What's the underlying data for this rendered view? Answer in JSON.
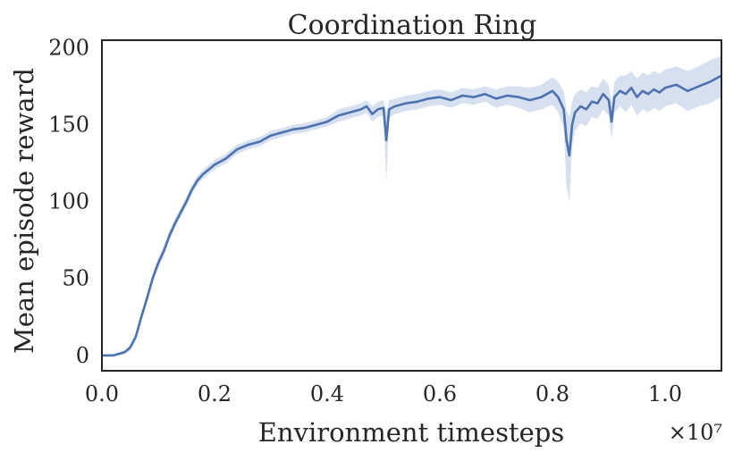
{
  "chart_data": {
    "type": "line",
    "title": "Coordination Ring",
    "xlabel": "Environment timesteps",
    "ylabel": "Mean episode reward",
    "x_offset_text": "×10⁷",
    "xlim": [
      0.0,
      1.1
    ],
    "ylim": [
      -10,
      205
    ],
    "x_ticks": [
      0.0,
      0.2,
      0.4,
      0.6,
      0.8,
      1.0
    ],
    "x_tick_labels": [
      "0.0",
      "0.2",
      "0.4",
      "0.6",
      "0.8",
      "1.0"
    ],
    "y_ticks": [
      0,
      50,
      100,
      150,
      200
    ],
    "y_tick_labels": [
      "0",
      "50",
      "100",
      "150",
      "200"
    ],
    "grid": false,
    "legend": "none",
    "line_color": "#4c72b0",
    "band_color": "#c9d6ea",
    "series": [
      {
        "x": [
          0.0,
          0.02,
          0.03,
          0.04,
          0.05,
          0.06,
          0.07,
          0.08,
          0.09,
          0.1,
          0.11,
          0.12,
          0.13,
          0.14,
          0.15,
          0.16,
          0.17,
          0.18,
          0.19,
          0.2,
          0.22,
          0.24,
          0.26,
          0.28,
          0.3,
          0.32,
          0.34,
          0.36,
          0.38,
          0.4,
          0.42,
          0.44,
          0.46,
          0.47,
          0.48,
          0.49,
          0.5,
          0.505,
          0.51,
          0.52,
          0.54,
          0.56,
          0.58,
          0.6,
          0.62,
          0.64,
          0.66,
          0.68,
          0.7,
          0.72,
          0.74,
          0.76,
          0.78,
          0.8,
          0.81,
          0.82,
          0.825,
          0.83,
          0.835,
          0.84,
          0.85,
          0.86,
          0.87,
          0.88,
          0.89,
          0.9,
          0.905,
          0.91,
          0.92,
          0.93,
          0.94,
          0.95,
          0.96,
          0.97,
          0.98,
          0.99,
          1.0,
          1.02,
          1.04,
          1.06,
          1.08,
          1.1
        ],
        "y": [
          0,
          0,
          1,
          2,
          5,
          12,
          25,
          37,
          50,
          60,
          68,
          78,
          86,
          93,
          100,
          108,
          114,
          118,
          121,
          124,
          128,
          134,
          137,
          139,
          143,
          145,
          147,
          148,
          150,
          152,
          156,
          158,
          160,
          162,
          157,
          160,
          161,
          140,
          160,
          162,
          164,
          165,
          167,
          168,
          166,
          169,
          168,
          170,
          167,
          169,
          168,
          166,
          168,
          172,
          168,
          160,
          140,
          130,
          150,
          158,
          162,
          160,
          165,
          164,
          170,
          166,
          152,
          168,
          172,
          170,
          174,
          168,
          172,
          170,
          173,
          171,
          174,
          176,
          172,
          175,
          178,
          182
        ],
        "lower": [
          0,
          0,
          0,
          1,
          3,
          10,
          22,
          34,
          47,
          57,
          65,
          75,
          83,
          90,
          97,
          105,
          111,
          115,
          118,
          121,
          125,
          131,
          134,
          136,
          140,
          142,
          144,
          145,
          147,
          149,
          152,
          154,
          156,
          158,
          152,
          155,
          156,
          112,
          154,
          157,
          159,
          160,
          162,
          163,
          161,
          164,
          163,
          165,
          161,
          163,
          161,
          158,
          160,
          163,
          158,
          148,
          110,
          100,
          135,
          146,
          151,
          149,
          155,
          154,
          160,
          156,
          140,
          158,
          162,
          158,
          163,
          156,
          160,
          158,
          161,
          159,
          162,
          164,
          159,
          162,
          164,
          168
        ],
        "upper": [
          0,
          0,
          2,
          3,
          7,
          14,
          28,
          40,
          53,
          63,
          71,
          81,
          89,
          96,
          103,
          111,
          117,
          121,
          124,
          127,
          131,
          137,
          140,
          142,
          146,
          148,
          150,
          151,
          153,
          155,
          160,
          162,
          164,
          166,
          162,
          165,
          166,
          158,
          166,
          167,
          169,
          170,
          172,
          173,
          171,
          174,
          173,
          175,
          173,
          175,
          175,
          174,
          176,
          181,
          178,
          172,
          160,
          155,
          165,
          170,
          173,
          171,
          175,
          174,
          180,
          176,
          164,
          178,
          182,
          182,
          185,
          180,
          184,
          182,
          185,
          183,
          186,
          188,
          185,
          188,
          192,
          195
        ]
      }
    ]
  }
}
